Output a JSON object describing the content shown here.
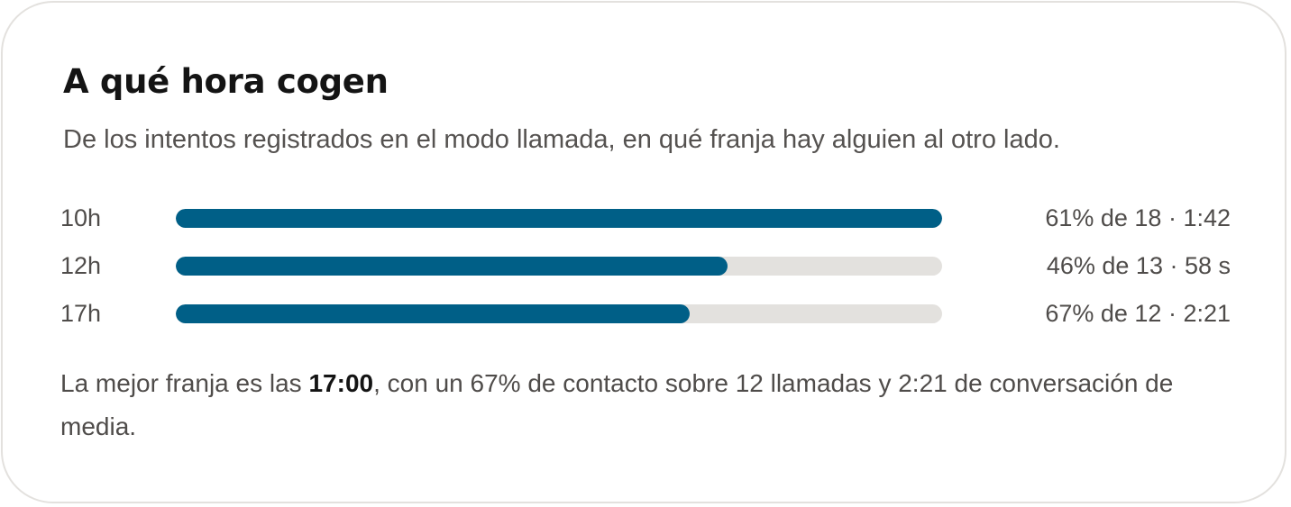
{
  "card": {
    "title": "A qué hora cogen",
    "subtitle": "De los intentos registrados en el modo llamada, en qué franja hay alguien al otro lado."
  },
  "rows": [
    {
      "label": "10h",
      "value_text": "61% de 18 · 1:42",
      "fill_fraction": 1.0
    },
    {
      "label": "12h",
      "value_text": "46% de 13 · 58 s",
      "fill_fraction": 0.72
    },
    {
      "label": "17h",
      "value_text": "67% de 12 · 2:21",
      "fill_fraction": 0.67
    }
  ],
  "summary": {
    "prefix": "La mejor franja es las ",
    "highlight": "17:00",
    "suffix": ", con un 67% de contacto sobre 12 llamadas y 2:21 de conversación de media."
  },
  "colors": {
    "bar_fill": "#005f87",
    "bar_track": "#e3e1de"
  }
}
